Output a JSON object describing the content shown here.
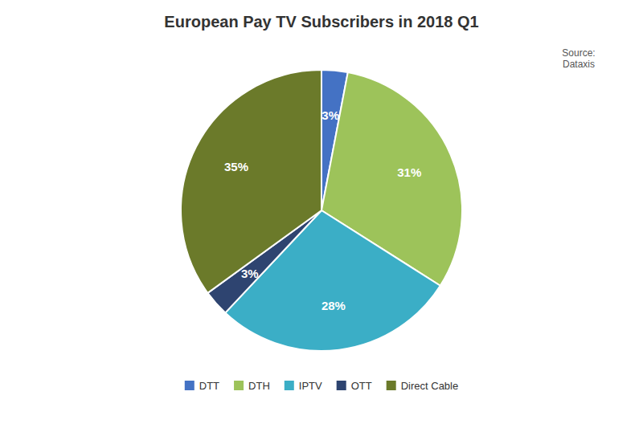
{
  "chart_data": {
    "type": "pie",
    "title": "European Pay TV Subscribers in 2018 Q1",
    "annotations": [
      "Source:\nDataxis"
    ],
    "categories": [
      "DTT",
      "DTH",
      "IPTV",
      "OTT",
      "Direct Cable"
    ],
    "values": [
      3,
      31,
      28,
      3,
      35
    ],
    "value_labels": [
      "3%",
      "31%",
      "28%",
      "3%",
      "35%"
    ],
    "data_labels": true,
    "colors": [
      "#4472C4",
      "#9DC35A",
      "#3BAEC6",
      "#2E4470",
      "#6B7A2A"
    ],
    "legend": "bottom"
  }
}
